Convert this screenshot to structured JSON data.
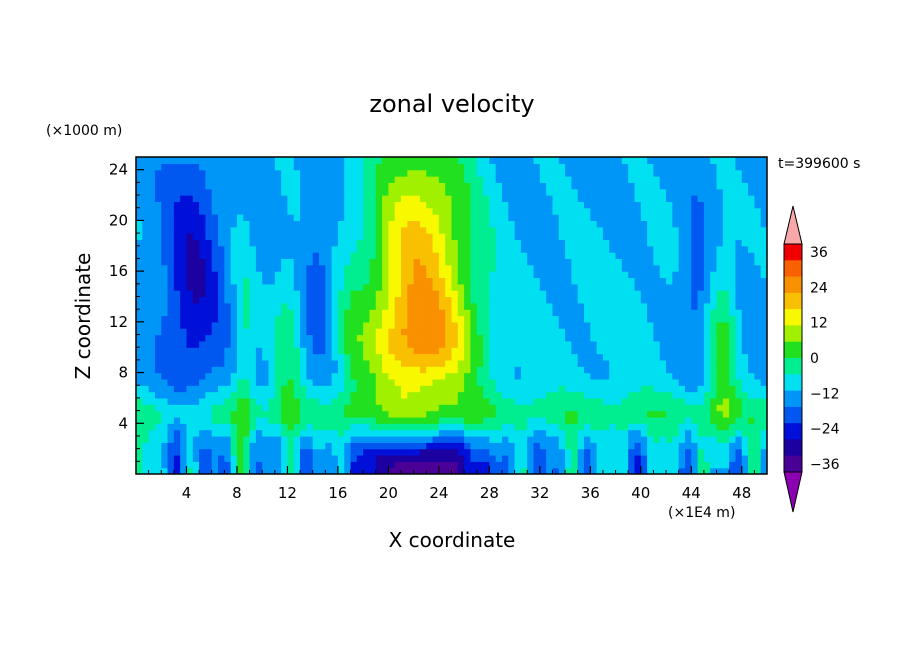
{
  "chart_data": {
    "type": "heatmap",
    "title": "zonal velocity",
    "xlabel": "X coordinate",
    "ylabel": "Z coordinate",
    "x_unit": "(×1E4 m)",
    "y_unit": "(×1000 m)",
    "time_label": "t=399600 s",
    "xlim": [
      0,
      50
    ],
    "ylim": [
      0,
      25
    ],
    "x_ticks": [
      4,
      8,
      12,
      16,
      20,
      24,
      28,
      32,
      36,
      40,
      44,
      48
    ],
    "y_ticks": [
      4,
      8,
      12,
      16,
      20,
      24
    ],
    "colorbar": {
      "levels": [
        -36,
        -30,
        -24,
        -18,
        -12,
        -6,
        0,
        6,
        12,
        18,
        24,
        30,
        36
      ],
      "tick_labels": [
        -36,
        -24,
        -12,
        0,
        12,
        24,
        36
      ],
      "colors": [
        "#8b00b0",
        "#4a0096",
        "#1c00a0",
        "#0010d8",
        "#0058f0",
        "#0096f8",
        "#00e0f0",
        "#00ee90",
        "#20e020",
        "#a0f000",
        "#f8f800",
        "#f8c000",
        "#f89000",
        "#f86000",
        "#f00000",
        "#f8a8a8"
      ]
    },
    "features": [
      {
        "name": "upper-west-jet",
        "x": 4.5,
        "z": 14,
        "value": -22
      },
      {
        "name": "upper-central-jet",
        "x": 22.5,
        "z": 17,
        "value": 28
      },
      {
        "name": "lower-central-jet",
        "x": 22.5,
        "z": 1,
        "value": -36
      },
      {
        "name": "upper-east-jet",
        "x": 44.5,
        "z": 15,
        "value": -18
      }
    ]
  }
}
